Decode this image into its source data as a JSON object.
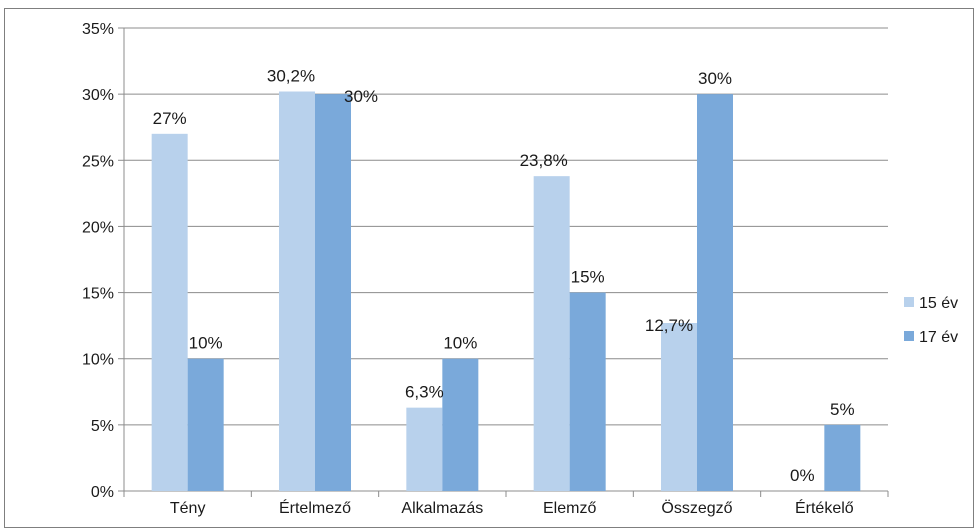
{
  "chart_data": {
    "type": "bar",
    "categories": [
      "Tény",
      "Értelmező",
      "Alkalmazás",
      "Elemző",
      "Összegző",
      "Értékelő"
    ],
    "series": [
      {
        "name": "15 év",
        "values": [
          27,
          30.2,
          6.3,
          23.8,
          12.7,
          0
        ],
        "labels": [
          "27%",
          "30,2%",
          "6,3%",
          "23,8%",
          "12,7%",
          "0%"
        ],
        "color": "#b8d1ec"
      },
      {
        "name": "17 év",
        "values": [
          10,
          30,
          10,
          15,
          30,
          5
        ],
        "labels": [
          "10%",
          "30%",
          "10%",
          "15%",
          "30%",
          "5%"
        ],
        "color": "#7aa9da"
      }
    ],
    "ylim": [
      0,
      35
    ],
    "yticks": [
      0,
      5,
      10,
      15,
      20,
      25,
      30,
      35
    ],
    "ytick_labels": [
      "0%",
      "5%",
      "10%",
      "15%",
      "20%",
      "25%",
      "30%",
      "35%"
    ],
    "title": "",
    "xlabel": "",
    "ylabel": "",
    "grid": true,
    "legend": "right"
  }
}
